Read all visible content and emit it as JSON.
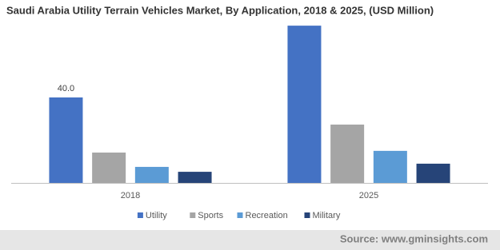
{
  "chart_data": {
    "type": "bar",
    "title": "Saudi Arabia Utility Terrain Vehicles Market, By Application, 2018 & 2025, (USD Million)",
    "categories": [
      "2018",
      "2025"
    ],
    "series": [
      {
        "name": "Utility",
        "color": "#4472c4",
        "values": [
          40,
          73.6
        ],
        "value_labels": [
          "40.0",
          null
        ]
      },
      {
        "name": "Sports",
        "color": "#a5a5a5",
        "values": [
          14.2,
          27.3
        ]
      },
      {
        "name": "Recreation",
        "color": "#5b9bd5",
        "values": [
          7.5,
          15.0
        ]
      },
      {
        "name": "Military",
        "color": "#264478",
        "values": [
          5.2,
          9.0
        ]
      }
    ],
    "legend": "bottom",
    "source": "Source: www.gminsights.com"
  }
}
